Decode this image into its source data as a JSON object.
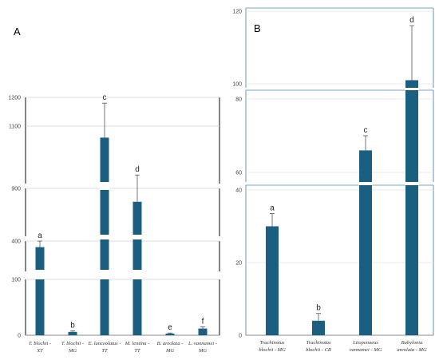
{
  "chart_data": [
    {
      "panel": "A",
      "type": "bar",
      "categories": [
        "T. blochii - XT",
        "T. blochii - MG",
        "E. lanceolatus - TT",
        "M. lentina - TT",
        "B. areolata - MG",
        "L. vannamei - MG"
      ],
      "values": [
        340,
        6,
        1060,
        760,
        3,
        12
      ],
      "errors": [
        60,
        2,
        120,
        170,
        1,
        3
      ],
      "labels": [
        "a",
        "b",
        "c",
        "d",
        "e",
        "f"
      ],
      "yticks": [
        "0",
        "100",
        "400",
        "900",
        "1100",
        "1200"
      ],
      "color": "#1a5e80",
      "broken_axis": true
    },
    {
      "panel": "B",
      "type": "bar",
      "categories": [
        "Trachinotus blochii - MG",
        "Trachinotus blochii - CR",
        "Litopenaeus vannamei - MG",
        "Babylonia areolata - MG"
      ],
      "values": [
        30,
        4,
        66,
        101
      ],
      "errors": [
        3.5,
        2,
        4,
        15
      ],
      "labels": [
        "a",
        "b",
        "c",
        "d"
      ],
      "yticks": [
        "0",
        "20",
        "40",
        "60",
        "80",
        "100",
        "120"
      ],
      "color": "#1a5e80",
      "broken_axis": true
    }
  ]
}
